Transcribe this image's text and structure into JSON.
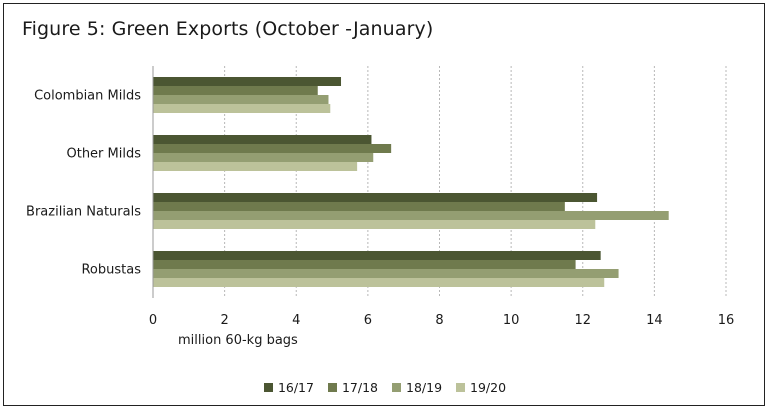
{
  "figure": {
    "title": "Figure 5: Green Exports (October -January)"
  },
  "chart_data": {
    "type": "bar",
    "orientation": "horizontal",
    "categories": [
      "Colombian Milds",
      "Other Milds",
      "Brazilian Naturals",
      "Robustas"
    ],
    "series": [
      {
        "name": "16/17",
        "color": "#4b5632",
        "values": [
          5.25,
          6.1,
          12.4,
          12.5
        ]
      },
      {
        "name": "17/18",
        "color": "#6f7a4d",
        "values": [
          4.6,
          6.65,
          11.5,
          11.8
        ]
      },
      {
        "name": "18/19",
        "color": "#949e72",
        "values": [
          4.9,
          6.15,
          14.4,
          13.0
        ]
      },
      {
        "name": "19/20",
        "color": "#bcc29a",
        "values": [
          4.95,
          5.7,
          12.35,
          12.6
        ]
      }
    ],
    "xlabel": "million 60-kg bags",
    "ylabel": "",
    "xlim": [
      0,
      16
    ],
    "xticks": [
      "0",
      "2",
      "4",
      "6",
      "8",
      "10",
      "12",
      "14",
      "16"
    ],
    "grid": "vertical dashed",
    "legend_position": "bottom"
  }
}
